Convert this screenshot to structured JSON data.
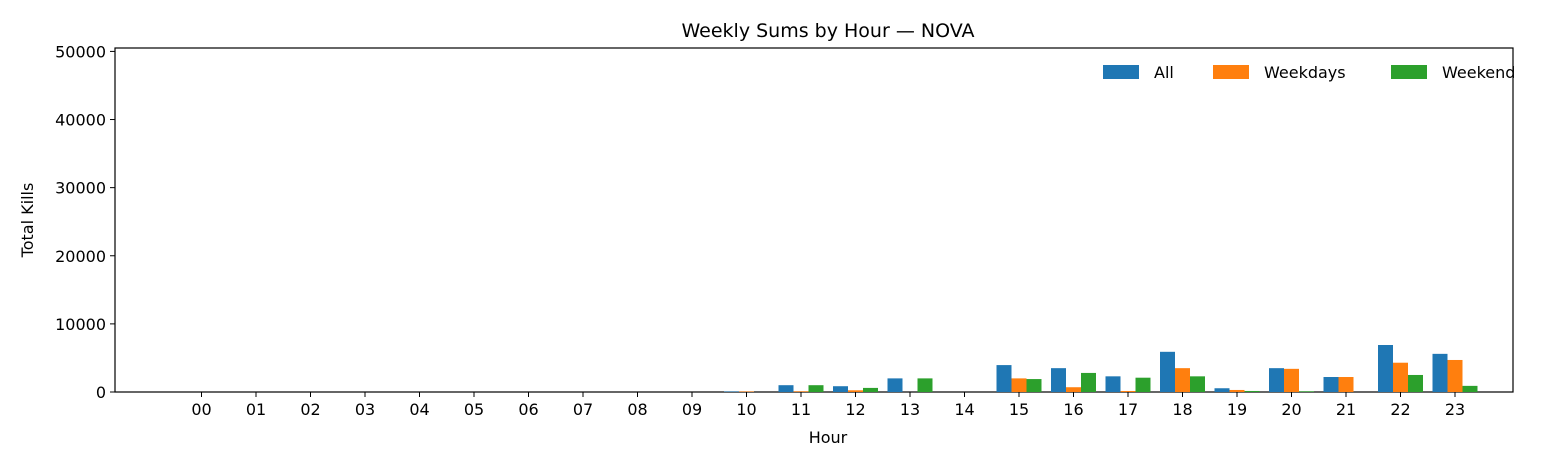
{
  "chart_data": {
    "type": "bar",
    "title": "Weekly Sums by Hour — NOVA",
    "xlabel": "Hour",
    "ylabel": "Total Kills",
    "ylim": [
      0,
      50500
    ],
    "yticks": [
      "0",
      "10000",
      "20000",
      "30000",
      "40000",
      "50000"
    ],
    "grid": false,
    "legend": "top-right",
    "categories": [
      "00",
      "01",
      "02",
      "03",
      "04",
      "05",
      "06",
      "07",
      "08",
      "09",
      "10",
      "11",
      "12",
      "13",
      "14",
      "15",
      "16",
      "17",
      "18",
      "19",
      "20",
      "21",
      "22",
      "23"
    ],
    "series": [
      {
        "name": "All",
        "color": "#1f77b4",
        "values": [
          0,
          0,
          0,
          0,
          0,
          0,
          0,
          0,
          0,
          0,
          80,
          1000,
          850,
          2000,
          0,
          3950,
          3500,
          2300,
          5900,
          550,
          3500,
          2200,
          6900,
          5600
        ]
      },
      {
        "name": "Weekdays",
        "color": "#ff7f0e",
        "values": [
          0,
          0,
          0,
          0,
          0,
          0,
          0,
          0,
          0,
          0,
          80,
          100,
          250,
          0,
          0,
          2000,
          700,
          150,
          3500,
          300,
          3400,
          2200,
          4300,
          4700
        ]
      },
      {
        "name": "Weekend",
        "color": "#2ca02c",
        "values": [
          0,
          0,
          0,
          0,
          0,
          0,
          0,
          0,
          0,
          0,
          0,
          1000,
          600,
          2000,
          0,
          1900,
          2800,
          2100,
          2300,
          150,
          100,
          0,
          2500,
          900
        ]
      }
    ]
  }
}
